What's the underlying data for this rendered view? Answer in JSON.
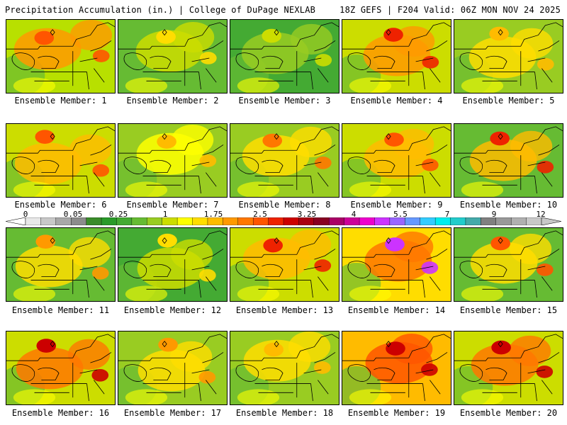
{
  "header": {
    "title_left": "Precipitation Accumulation (in.) | College of DuPage NEXLAB",
    "title_right": "18Z GEFS | F204 Valid: 06Z MON NOV 24 2025"
  },
  "legend": {
    "tick_labels": [
      "0",
      "0.05",
      "0.25",
      "1",
      "1.75",
      "2.5",
      "3.25",
      "4",
      "5.5",
      "7",
      "9",
      "12"
    ],
    "colors": [
      "#e8e8e8",
      "#c8c8c8",
      "#a8a8a8",
      "#8c8c8c",
      "#3a8c2a",
      "#2a9a2a",
      "#44aa33",
      "#66bb33",
      "#99cc22",
      "#ccdd00",
      "#ffff00",
      "#ffdd00",
      "#ffbb00",
      "#ff9900",
      "#ff7700",
      "#ff5500",
      "#ee2200",
      "#cc0000",
      "#aa0011",
      "#880022",
      "#aa0066",
      "#cc0099",
      "#ee00cc",
      "#cc33ff",
      "#9966ff",
      "#6699ff",
      "#33ccff",
      "#00eeee",
      "#22cccc",
      "#44aaaa",
      "#808080",
      "#999999",
      "#b0b0b0",
      "#c8c8c8"
    ]
  },
  "members": [
    {
      "label": "Ensemble Member: 1",
      "tone": "#b8e000",
      "hot": "#ff9900",
      "peak": "#ff5500"
    },
    {
      "label": "Ensemble Member: 2",
      "tone": "#66bb33",
      "hot": "#ccdd00",
      "peak": "#ffdd00"
    },
    {
      "label": "Ensemble Member: 3",
      "tone": "#44aa33",
      "hot": "#99cc22",
      "peak": "#ccdd00"
    },
    {
      "label": "Ensemble Member: 4",
      "tone": "#ccdd00",
      "hot": "#ff9900",
      "peak": "#ee2200"
    },
    {
      "label": "Ensemble Member: 5",
      "tone": "#99cc22",
      "hot": "#ffdd00",
      "peak": "#ffbb00"
    },
    {
      "label": "Ensemble Member: 6",
      "tone": "#ccdd00",
      "hot": "#ffbb00",
      "peak": "#ff5500"
    },
    {
      "label": "Ensemble Member: 7",
      "tone": "#99cc22",
      "hot": "#ffff00",
      "peak": "#ffbb00"
    },
    {
      "label": "Ensemble Member: 8",
      "tone": "#99cc22",
      "hot": "#ffdd00",
      "peak": "#ff7700"
    },
    {
      "label": "Ensemble Member: 9",
      "tone": "#ccdd00",
      "hot": "#ffbb00",
      "peak": "#ff5500"
    },
    {
      "label": "Ensemble Member: 10",
      "tone": "#66bb33",
      "hot": "#ffbb00",
      "peak": "#ee2200"
    },
    {
      "label": "Ensemble Member: 11",
      "tone": "#66bb33",
      "hot": "#ffdd00",
      "peak": "#ff9900"
    },
    {
      "label": "Ensemble Member: 12",
      "tone": "#44aa33",
      "hot": "#ccdd00",
      "peak": "#ffdd00"
    },
    {
      "label": "Ensemble Member: 13",
      "tone": "#ccdd00",
      "hot": "#ffbb00",
      "peak": "#ee2200"
    },
    {
      "label": "Ensemble Member: 14",
      "tone": "#ffdd00",
      "hot": "#ff7700",
      "peak": "#cc33ff"
    },
    {
      "label": "Ensemble Member: 15",
      "tone": "#66bb33",
      "hot": "#ffdd00",
      "peak": "#ff5500"
    },
    {
      "label": "Ensemble Member: 16",
      "tone": "#ccdd00",
      "hot": "#ff7700",
      "peak": "#cc0000"
    },
    {
      "label": "Ensemble Member: 17",
      "tone": "#99cc22",
      "hot": "#ffdd00",
      "peak": "#ff9900"
    },
    {
      "label": "Ensemble Member: 18",
      "tone": "#99cc22",
      "hot": "#ffdd00",
      "peak": "#ffbb00"
    },
    {
      "label": "Ensemble Member: 19",
      "tone": "#ffbb00",
      "hot": "#ff5500",
      "peak": "#cc0000"
    },
    {
      "label": "Ensemble Member: 20",
      "tone": "#ccdd00",
      "hot": "#ff7700",
      "peak": "#cc0000"
    }
  ]
}
